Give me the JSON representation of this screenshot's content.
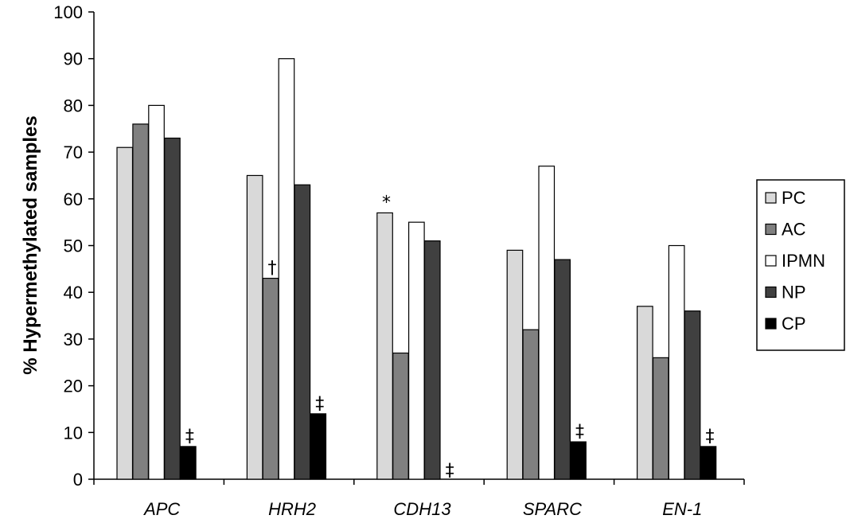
{
  "chart_data": {
    "type": "bar",
    "title": "",
    "xlabel": "",
    "ylabel": "% Hypermethylated samples",
    "ylim": [
      0,
      100
    ],
    "yticks": [
      "0",
      "10",
      "20",
      "30",
      "40",
      "50",
      "60",
      "70",
      "80",
      "90",
      "100"
    ],
    "grid": false,
    "legend_position": "right",
    "categories": [
      "APC",
      "HRH2",
      "CDH13",
      "SPARC",
      "EN-1"
    ],
    "series": [
      {
        "name": "PC",
        "color": "#d9d9d9",
        "values": [
          71,
          65,
          57,
          49,
          37
        ]
      },
      {
        "name": "AC",
        "color": "#808080",
        "values": [
          76,
          43,
          27,
          32,
          26
        ]
      },
      {
        "name": "IPMN",
        "color": "#ffffff",
        "values": [
          80,
          90,
          55,
          67,
          50
        ]
      },
      {
        "name": "NP",
        "color": "#404040",
        "values": [
          73,
          63,
          51,
          47,
          36
        ]
      },
      {
        "name": "CP",
        "color": "#000000",
        "values": [
          7,
          14,
          0,
          8,
          7
        ]
      }
    ],
    "annotations": [
      {
        "text": "‡",
        "category": 0,
        "series": 4
      },
      {
        "text": "†",
        "category": 1,
        "series": 1
      },
      {
        "text": "‡",
        "category": 1,
        "series": 4
      },
      {
        "text": "*",
        "category": 2,
        "series": 0
      },
      {
        "text": "‡",
        "category": 2,
        "series": 4
      },
      {
        "text": "‡",
        "category": 3,
        "series": 4
      },
      {
        "text": "‡",
        "category": 4,
        "series": 4
      }
    ]
  }
}
